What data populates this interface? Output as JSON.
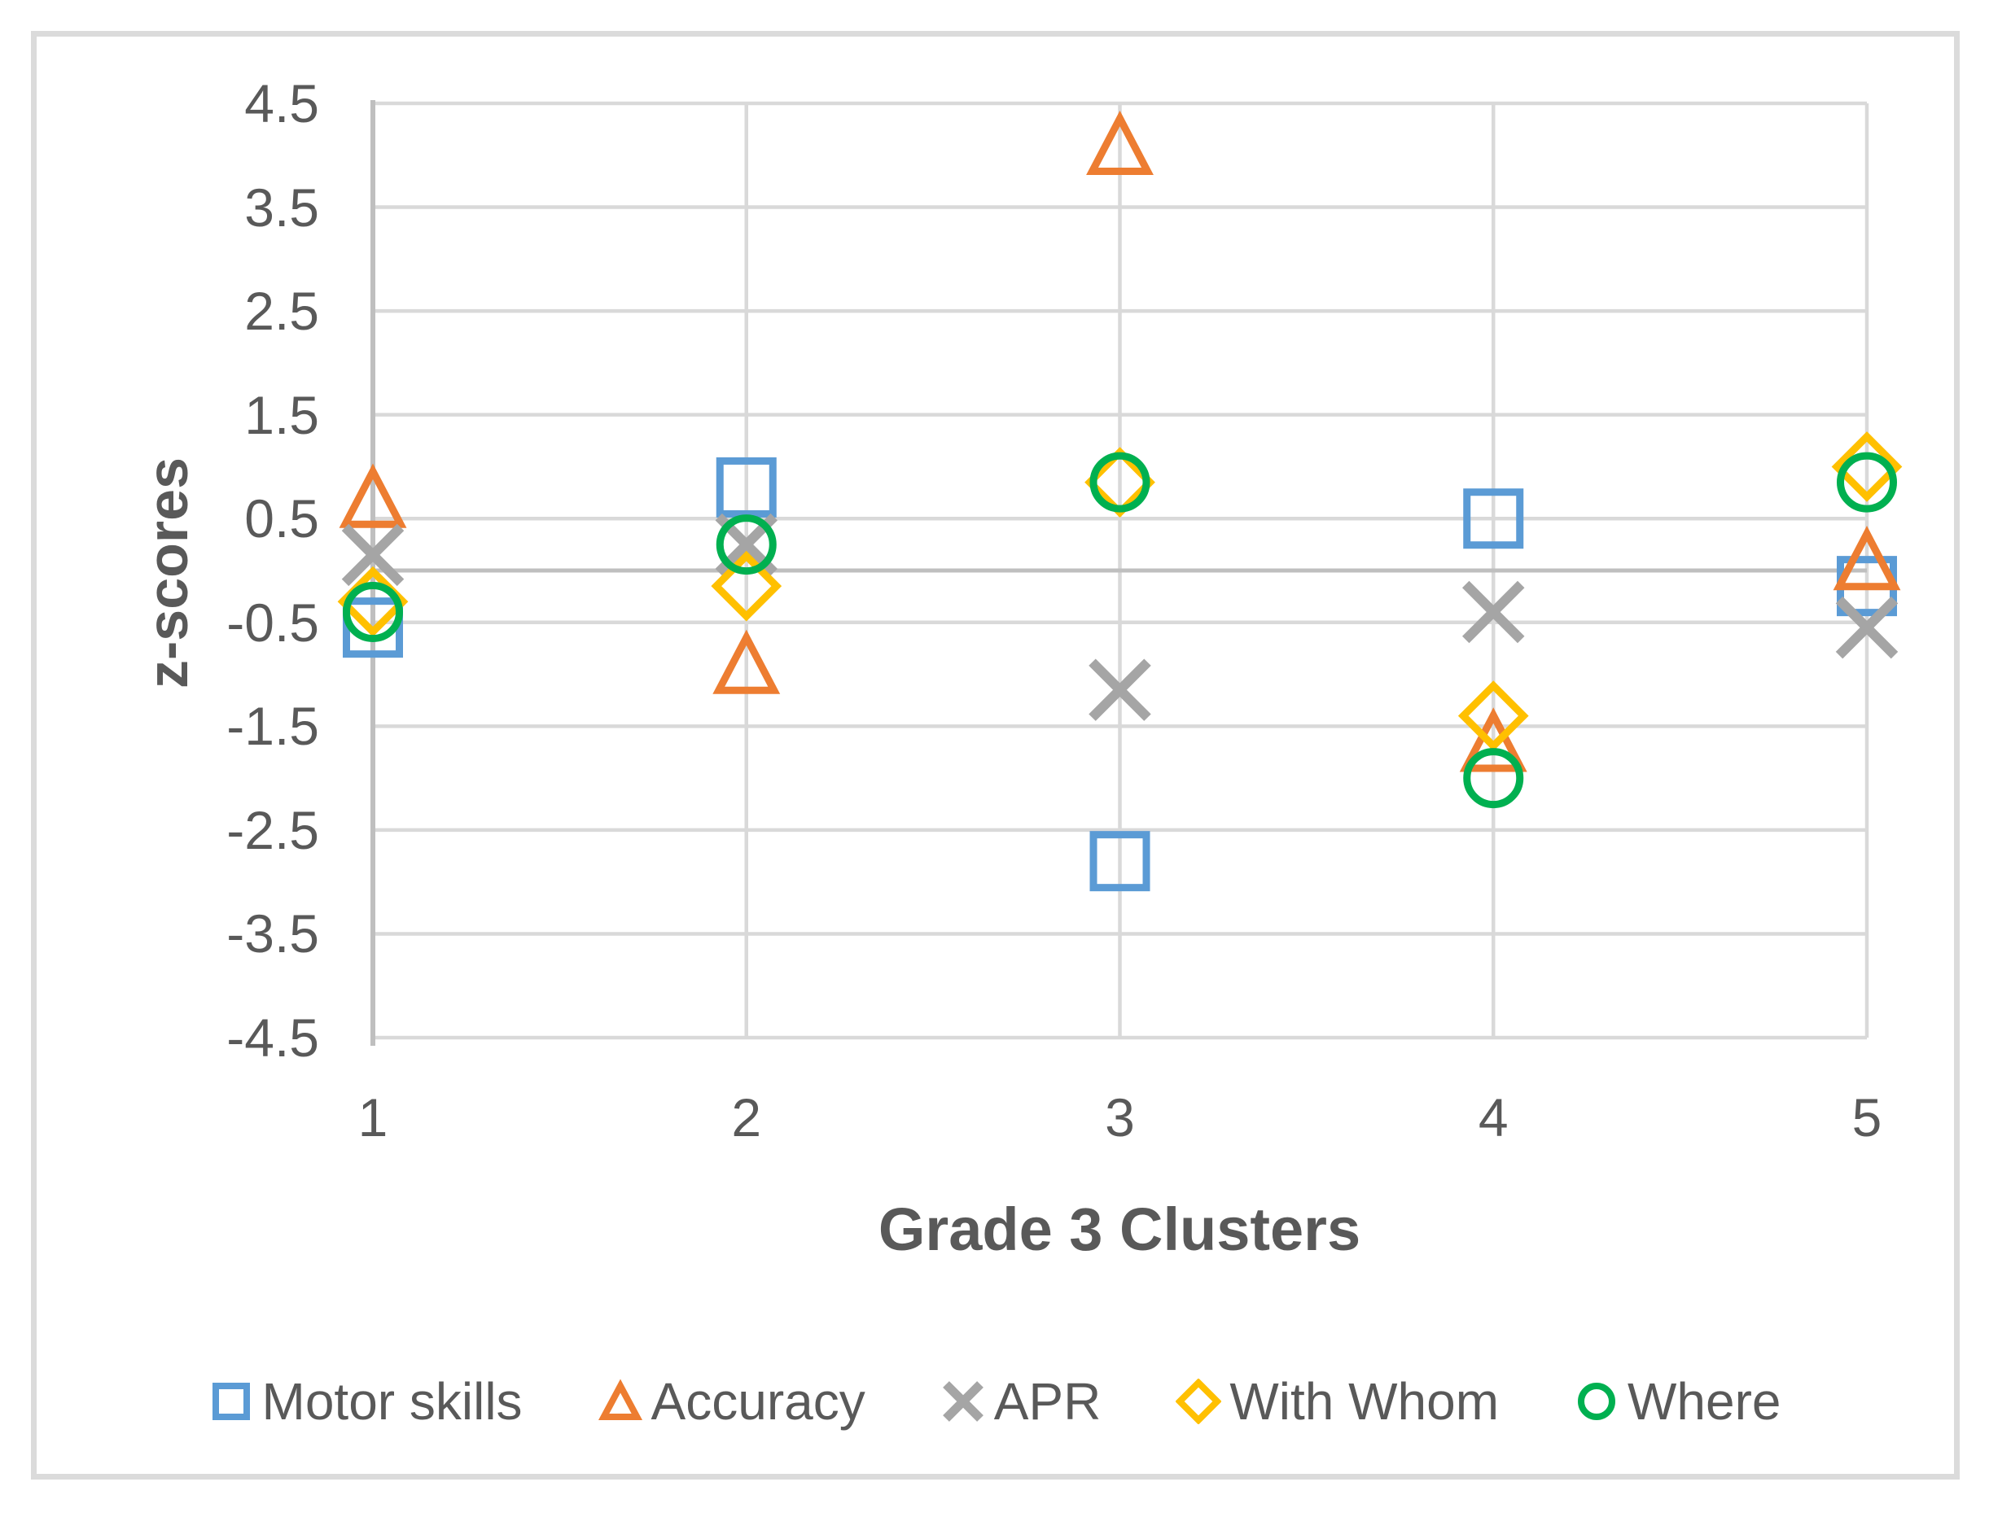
{
  "figure": {
    "background": "#FFFFFF",
    "border_color": "#DBDBDB"
  },
  "chart_data": {
    "type": "scatter",
    "title": "",
    "xlabel": "Grade 3 Clusters",
    "ylabel": "z-scores",
    "categories": [
      "1",
      "2",
      "3",
      "4",
      "5"
    ],
    "y_ticks": [
      "4.5",
      "3.5",
      "2.5",
      "1.5",
      "0.5",
      "-0.5",
      "-1.5",
      "-2.5",
      "-3.5",
      "-4.5"
    ],
    "ylim": [
      -4.5,
      4.5
    ],
    "grid": true,
    "legend_position": "bottom",
    "series": [
      {
        "name": "Motor skills",
        "marker": "square",
        "color": "#5B9BD5",
        "values": [
          -0.55,
          0.8,
          -2.8,
          0.5,
          -0.15
        ]
      },
      {
        "name": "Accuracy",
        "marker": "triangle",
        "color": "#ED7D31",
        "values": [
          0.7,
          -0.9,
          4.1,
          -1.65,
          0.1
        ]
      },
      {
        "name": "APR",
        "marker": "x",
        "color": "#A5A5A5",
        "values": [
          0.15,
          0.25,
          -1.15,
          -0.4,
          -0.55
        ]
      },
      {
        "name": "With Whom",
        "marker": "diamond",
        "color": "#FFC000",
        "values": [
          -0.3,
          -0.15,
          0.85,
          -1.4,
          1.0
        ]
      },
      {
        "name": "Where",
        "marker": "circle",
        "color": "#00B050",
        "values": [
          -0.4,
          0.25,
          0.85,
          -2.0,
          0.85
        ]
      }
    ],
    "colors": {
      "gridline": "#D9D9D9",
      "axis_line": "#BFBFBF",
      "text": "#595959"
    }
  }
}
